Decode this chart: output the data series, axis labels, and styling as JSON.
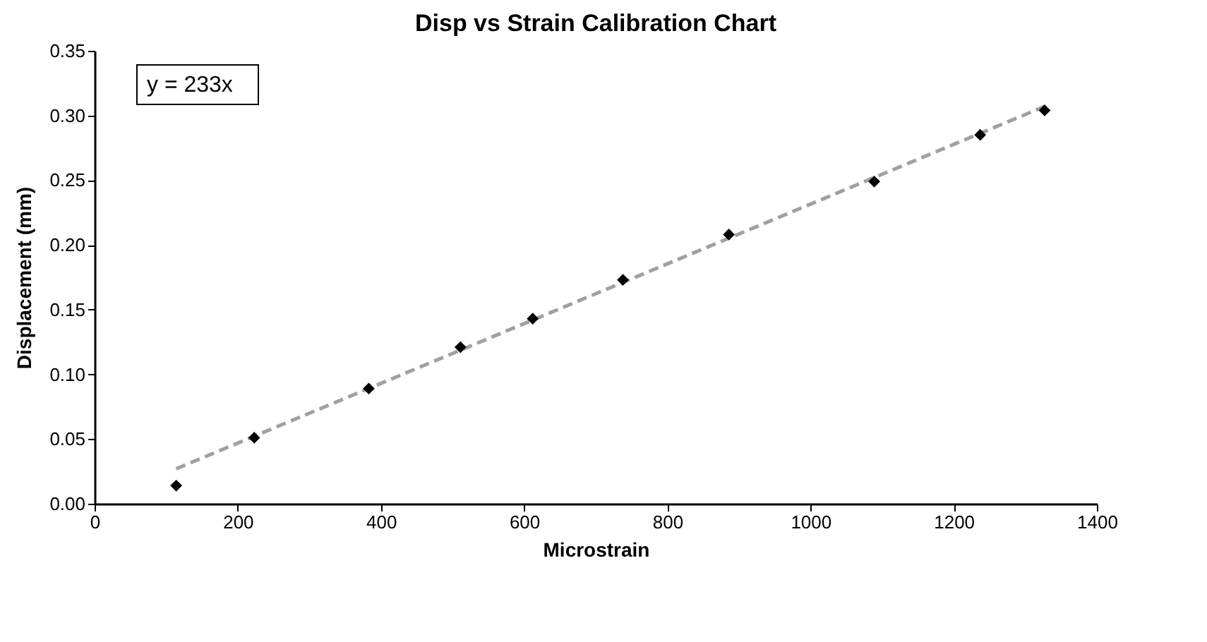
{
  "chart_data": {
    "type": "scatter",
    "title": "Disp vs Strain  Calibration  Chart",
    "xlabel": "Microstrain",
    "ylabel": "Displacement (mm)",
    "xlim": [
      0,
      1400
    ],
    "xticks": [
      0,
      200,
      400,
      600,
      800,
      1000,
      1200,
      1400
    ],
    "ylim": [
      0,
      0.35
    ],
    "yticks": [
      {
        "value": 0,
        "label": "0.00"
      },
      {
        "value": 0.05,
        "label": "0.05"
      },
      {
        "value": 0.1,
        "label": "0.10"
      },
      {
        "value": 0.15,
        "label": "0.15"
      },
      {
        "value": 0.2,
        "label": "0.20"
      },
      {
        "value": 0.25,
        "label": "0.25"
      },
      {
        "value": 0.3,
        "label": "0.30"
      },
      {
        "value": 0.35,
        "label": "0.35"
      }
    ],
    "grid": false,
    "legend": false,
    "annotations": [
      "y = 233x"
    ],
    "series": [
      {
        "type": "scatter",
        "color": "#000000",
        "marker": "diamond",
        "x": [
          114,
          223,
          383,
          511,
          612,
          738,
          886,
          1089,
          1237,
          1327
        ],
        "values": [
          0.014,
          0.051,
          0.089,
          0.121,
          0.143,
          0.173,
          0.208,
          0.249,
          0.285,
          0.304
        ]
      },
      {
        "type": "line",
        "color": "#a0a0a0",
        "line_style": "dashed",
        "x": [
          114,
          1327
        ],
        "values": [
          0.027,
          0.307
        ]
      }
    ]
  }
}
